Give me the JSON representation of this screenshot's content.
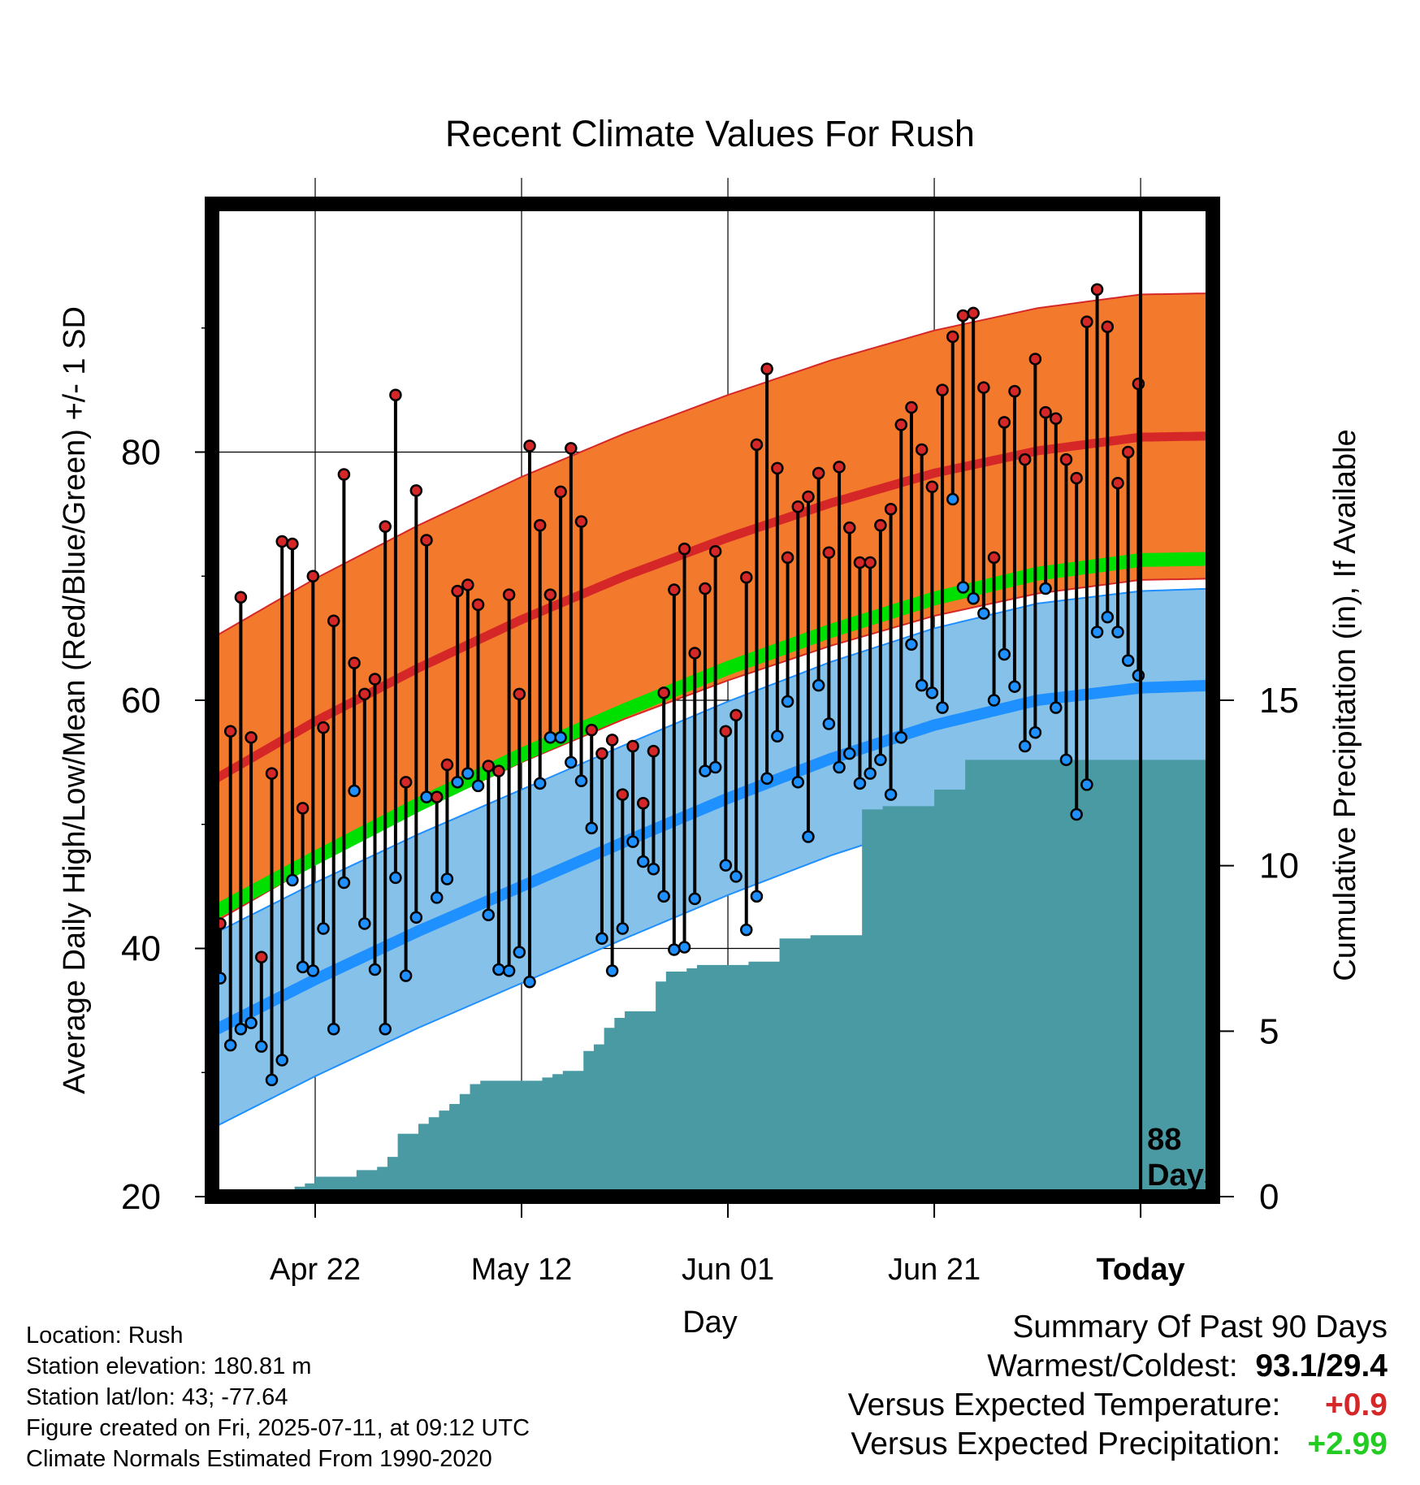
{
  "chart_data": {
    "type": "line",
    "title": "Recent Climate Values For Rush",
    "xlabel": "Day",
    "ylabel": "Average Daily High/Low/Mean (Red/Blue/Green) +/- 1 SD",
    "y2label": "Cumulative Precipitation (in), If Available",
    "ylim": [
      20,
      100
    ],
    "y2lim": [
      0,
      30
    ],
    "xlim": [
      -88,
      9
    ],
    "x_ticks": [
      {
        "x": -78,
        "label": "Apr 22"
      },
      {
        "x": -58,
        "label": "May 12"
      },
      {
        "x": -38,
        "label": "Jun 01"
      },
      {
        "x": -18,
        "label": "Jun 21"
      },
      {
        "x": 2,
        "label": "Today"
      }
    ],
    "y_ticks": [
      20,
      40,
      60,
      80
    ],
    "y2_ticks": [
      0,
      5,
      10,
      15
    ],
    "today_x": 2,
    "today_label": [
      "88",
      "Days"
    ],
    "grid": true,
    "normals": {
      "x": [
        -88,
        -78,
        -68,
        -58,
        -48,
        -38,
        -28,
        -18,
        -8,
        2,
        9
      ],
      "high_mean": [
        53.5,
        58.3,
        62.6,
        66.5,
        70.0,
        73.1,
        75.9,
        78.3,
        80.1,
        81.2,
        81.3
      ],
      "high_sd": 11.5,
      "mid_mean": [
        42.8,
        47.3,
        51.6,
        55.6,
        59.2,
        62.6,
        65.6,
        68.2,
        70.2,
        71.3,
        71.4
      ],
      "low_mean": [
        33.3,
        37.5,
        41.4,
        45.0,
        48.6,
        52.1,
        55.3,
        58.0,
        60.0,
        61.0,
        61.2
      ],
      "low_sd": 7.8
    },
    "series": [
      {
        "name": "High",
        "values": [
          42,
          57.5,
          68.3,
          57,
          39.3,
          54.1,
          72.8,
          72.6,
          51.3,
          70,
          57.8,
          66.4,
          78.2,
          63,
          60.5,
          61.7,
          74,
          84.6,
          53.4,
          76.9,
          72.9,
          52.2,
          54.8,
          68.8,
          69.3,
          67.7,
          54.7,
          54.3,
          68.5,
          60.5,
          80.5,
          74.1,
          68.5,
          76.8,
          80.3,
          74.4,
          57.6,
          55.7,
          56.8,
          52.4,
          56.3,
          51.7,
          55.9,
          60.6,
          68.9,
          72.2,
          63.8,
          69,
          72,
          57.5,
          58.8,
          69.9,
          80.6,
          86.7,
          78.7,
          71.5,
          75.6,
          76.4,
          78.3,
          71.9,
          78.8,
          73.9,
          71.1,
          71.1,
          74.1,
          75.4,
          82.2,
          83.6,
          80.2,
          77.2,
          85,
          89.3,
          91,
          91.2,
          85.2,
          71.5,
          82.4,
          84.9,
          79.4,
          87.5,
          83.2,
          82.7,
          79.4,
          77.9,
          90.5,
          93.1,
          90.1,
          77.5,
          80,
          85.5
        ]
      },
      {
        "name": "Low",
        "values": [
          37.6,
          32.2,
          33.5,
          34,
          32.1,
          29.4,
          31,
          45.5,
          38.5,
          38.2,
          41.6,
          33.5,
          45.3,
          52.7,
          42,
          38.3,
          33.5,
          45.7,
          37.8,
          42.5,
          52.2,
          44.1,
          45.6,
          53.4,
          54.1,
          53.1,
          42.7,
          38.3,
          38.2,
          39.7,
          37.3,
          53.3,
          57,
          57,
          55,
          53.5,
          49.7,
          40.8,
          38.2,
          41.6,
          48.6,
          47,
          46.4,
          44.2,
          39.9,
          40.1,
          44,
          54.3,
          54.6,
          46.7,
          45.8,
          41.5,
          44.2,
          53.7,
          57.1,
          59.9,
          53.4,
          49,
          61.2,
          58.1,
          54.6,
          55.7,
          53.3,
          54.1,
          55.2,
          52.4,
          57,
          64.5,
          61.2,
          60.6,
          59.4,
          76.2,
          69.1,
          68.2,
          67,
          60,
          63.7,
          61.1,
          56.3,
          57.4,
          69,
          59.4,
          55.2,
          50.8,
          53.2,
          65.5,
          66.7,
          65.5,
          63.2,
          62
        ]
      },
      {
        "name": "Cumulative Precipitation",
        "x": [
          -88,
          -81,
          -80,
          -79,
          -78,
          -77,
          -76,
          -75,
          -74,
          -73,
          -72,
          -71,
          -70,
          -69,
          -68,
          -67,
          -66,
          -65,
          -64,
          -63,
          -62,
          -61,
          -60,
          -59,
          -58,
          -57,
          -56,
          -55,
          -54,
          -53,
          -52,
          -51,
          -50,
          -49,
          -48,
          -47,
          -46,
          -45,
          -44,
          -43,
          -42,
          -41,
          -40,
          -39,
          -38,
          -37,
          -36,
          -35,
          -34,
          -33,
          -32,
          -31,
          -30,
          -29,
          -28,
          -27,
          -26,
          -25,
          -24,
          -23,
          -22,
          -21,
          -20,
          -19,
          -18,
          -17,
          -16,
          -15,
          -14,
          -13,
          -12,
          -11,
          -10,
          -9,
          -8,
          -7,
          -6,
          -5,
          -4,
          -3,
          -2,
          -1,
          0,
          1,
          2,
          9
        ],
        "values": [
          0,
          0,
          0.3,
          0.4,
          0.6,
          0.6,
          0.6,
          0.6,
          0.8,
          0.8,
          0.9,
          1.2,
          1.9,
          1.9,
          2.2,
          2.4,
          2.6,
          2.8,
          3.1,
          3.4,
          3.5,
          3.5,
          3.5,
          3.5,
          3.5,
          3.5,
          3.6,
          3.7,
          3.8,
          3.8,
          4.4,
          4.6,
          5.1,
          5.4,
          5.6,
          5.6,
          5.6,
          6.5,
          6.8,
          6.8,
          6.9,
          7,
          7,
          7,
          7,
          7,
          7.1,
          7.1,
          7.1,
          7.8,
          7.8,
          7.8,
          7.9,
          7.9,
          7.9,
          7.9,
          7.9,
          11.7,
          11.7,
          11.8,
          11.8,
          11.8,
          11.8,
          11.8,
          12.3,
          12.3,
          12.3,
          13.2,
          13.2,
          13.2,
          13.2,
          13.2,
          13.2,
          13.2,
          13.2,
          13.2,
          13.2,
          13.2,
          13.2,
          13.2,
          13.2,
          13.2,
          13.2,
          13.2,
          13.2,
          13.2
        ]
      }
    ]
  },
  "meta": {
    "location": "Location: Rush",
    "elevation": "Station elevation: 180.81 m",
    "latlon": "Station lat/lon: 43; -77.64",
    "created": "Figure created on Fri, 2025-07-11, at 09:12 UTC",
    "normals": "Climate Normals Estimated From 1990-2020"
  },
  "summary": {
    "heading": "Summary Of Past 90 Days",
    "warmest_label": "Warmest/Coldest:",
    "warmest_value": "93.1/29.4",
    "temp_label": "Versus Expected Temperature:",
    "temp_value": "+0.9",
    "precip_label": "Versus Expected Precipitation:",
    "precip_value": "+2.99",
    "colors": {
      "temp": "#d62728",
      "precip": "#22cc22"
    }
  }
}
